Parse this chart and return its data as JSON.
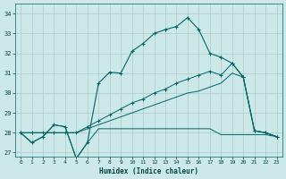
{
  "xlabel": "Humidex (Indice chaleur)",
  "background_color": "#cce8e8",
  "grid_color": "#aacccc",
  "line_color": "#006666",
  "xlim": [
    -0.5,
    23.5
  ],
  "ylim": [
    26.8,
    34.5
  ],
  "yticks": [
    27,
    28,
    29,
    30,
    31,
    32,
    33,
    34
  ],
  "xticks": [
    0,
    1,
    2,
    3,
    4,
    5,
    6,
    7,
    8,
    9,
    10,
    11,
    12,
    13,
    14,
    15,
    16,
    17,
    18,
    19,
    20,
    21,
    22,
    23
  ],
  "line_main": [
    28.0,
    27.5,
    27.8,
    28.4,
    28.3,
    26.7,
    27.5,
    30.5,
    31.05,
    31.0,
    32.1,
    32.5,
    33.0,
    33.2,
    33.35,
    33.8,
    33.2,
    32.0,
    31.8,
    31.5,
    30.8,
    28.1,
    28.0,
    27.8
  ],
  "line_flat": [
    28.0,
    27.5,
    27.8,
    28.4,
    28.3,
    26.7,
    27.5,
    28.2,
    28.2,
    28.2,
    28.2,
    28.2,
    28.2,
    28.2,
    28.2,
    28.2,
    28.2,
    28.2,
    27.9,
    27.9,
    27.9,
    27.9,
    27.9,
    27.8
  ],
  "line_diag1": [
    28.0,
    28.0,
    28.0,
    28.0,
    28.0,
    28.0,
    28.3,
    28.6,
    28.9,
    29.2,
    29.5,
    29.7,
    30.0,
    30.2,
    30.5,
    30.7,
    30.9,
    31.1,
    30.9,
    31.5,
    30.8,
    28.1,
    28.0,
    27.8
  ],
  "line_diag2": [
    28.0,
    28.0,
    28.0,
    28.0,
    28.0,
    28.0,
    28.2,
    28.4,
    28.6,
    28.8,
    29.0,
    29.2,
    29.4,
    29.6,
    29.8,
    30.0,
    30.1,
    30.3,
    30.5,
    31.0,
    30.8,
    28.1,
    28.0,
    27.8
  ]
}
